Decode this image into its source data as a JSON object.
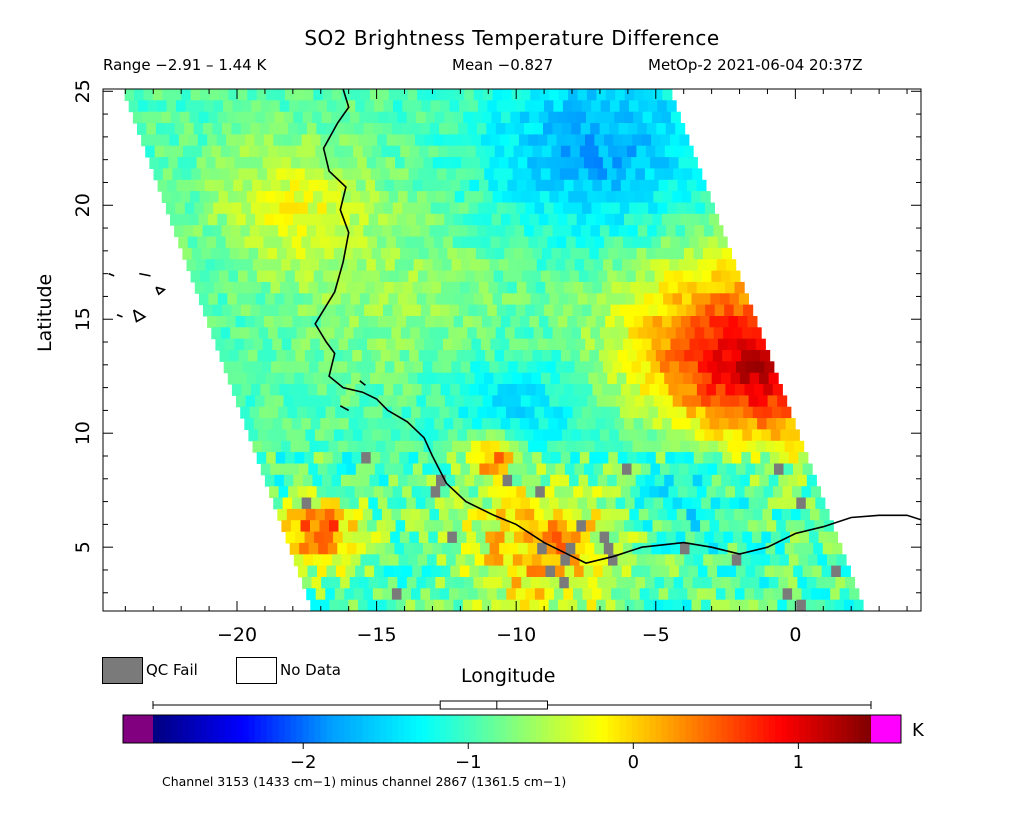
{
  "title": "SO2 Brightness Temperature Difference",
  "stats": {
    "range": "Range −2.91 – 1.44 K",
    "mean": "Mean −0.827",
    "satellite_time": "MetOp-2 2021-06-04 20:37Z"
  },
  "axes": {
    "xlabel": "Longitude",
    "ylabel": "Latitude",
    "xlim": [
      -24.8,
      4.5
    ],
    "ylim": [
      2.2,
      25.1
    ],
    "xticks": [
      -20,
      -15,
      -10,
      -5,
      0
    ],
    "xtick_labels": [
      "−20",
      "−15",
      "−10",
      "−5",
      "0"
    ],
    "yticks": [
      5,
      10,
      15,
      20,
      25
    ],
    "ytick_labels": [
      "5",
      "10",
      "15",
      "20",
      "25"
    ]
  },
  "legend": {
    "qc_fail_label": "QC Fail",
    "qc_fail_color": "#7a7a7a",
    "no_data_label": "No Data",
    "no_data_color": "#ffffff"
  },
  "colorbar": {
    "min": -2.91,
    "max": 1.44,
    "ticks": [
      -2,
      -1,
      0,
      1
    ],
    "tick_labels": [
      "−2",
      "−1",
      "0",
      "1"
    ],
    "unit": "K",
    "under_color": "#800080",
    "over_color": "#ff00ff",
    "stops": [
      "#000080",
      "#0000ff",
      "#00a0ff",
      "#00ffff",
      "#80ff80",
      "#ffff00",
      "#ff8000",
      "#ff0000",
      "#800000"
    ],
    "boxplot": {
      "whisker_low": -2.91,
      "q1": -1.17,
      "median": -0.827,
      "q3": -0.52,
      "whisker_high": 1.44
    }
  },
  "footnote": "Channel 3153 (1433 cm−1) minus channel 2867 (1361.5 cm−1)",
  "colors": {
    "frame": "#000000",
    "coastline": "#000000"
  },
  "chart_data": {
    "type": "heatmap",
    "title": "SO2 Brightness Temperature Difference",
    "xlabel": "Longitude",
    "ylabel": "Latitude",
    "x_range": [
      -24.8,
      4.5
    ],
    "y_range": [
      2.2,
      25.1
    ],
    "value_range": [
      -2.91,
      1.44
    ],
    "mean": -0.827,
    "unit": "K",
    "swath_corners": [
      [
        -24.1,
        25.1
      ],
      [
        -4.5,
        25.1
      ],
      [
        2.5,
        2.2
      ],
      [
        -17.3,
        2.2
      ]
    ],
    "regions": [
      {
        "lon": -1.0,
        "lat": 12.5,
        "radius": 3.5,
        "value": 0.7
      },
      {
        "lon": -3.0,
        "lat": 14.5,
        "radius": 4.0,
        "value": 0.2
      },
      {
        "lon": -9.0,
        "lat": 5.0,
        "radius": 3.0,
        "value": 0.4
      },
      {
        "lon": -17.0,
        "lat": 5.5,
        "radius": 1.5,
        "value": 0.8
      },
      {
        "lon": -11.0,
        "lat": 9.0,
        "radius": 1.0,
        "value": 0.6
      },
      {
        "lon": -7.0,
        "lat": 22.5,
        "radius": 4.0,
        "value": -1.9
      },
      {
        "lon": -10.0,
        "lat": 11.0,
        "radius": 2.5,
        "value": -1.6
      },
      {
        "lon": -4.0,
        "lat": 7.5,
        "radius": 2.5,
        "value": -1.5
      },
      {
        "lon": -18.0,
        "lat": 20.0,
        "radius": 3.0,
        "value": -0.2
      },
      {
        "lon": -14.0,
        "lat": 16.0,
        "radius": 4.0,
        "value": -0.6
      }
    ],
    "coastline": [
      [
        -16.2,
        25.1
      ],
      [
        -16.0,
        24.3
      ],
      [
        -16.4,
        23.6
      ],
      [
        -16.9,
        22.5
      ],
      [
        -16.7,
        21.5
      ],
      [
        -16.1,
        20.8
      ],
      [
        -16.3,
        19.8
      ],
      [
        -16.0,
        18.8
      ],
      [
        -16.2,
        17.5
      ],
      [
        -16.5,
        16.2
      ],
      [
        -17.2,
        14.8
      ],
      [
        -16.8,
        14.0
      ],
      [
        -16.5,
        13.5
      ],
      [
        -16.7,
        12.5
      ],
      [
        -16.2,
        12.0
      ],
      [
        -15.5,
        11.8
      ],
      [
        -15.0,
        11.5
      ],
      [
        -14.6,
        11.0
      ],
      [
        -13.9,
        10.5
      ],
      [
        -13.3,
        9.8
      ],
      [
        -13.0,
        9.0
      ],
      [
        -12.5,
        7.8
      ],
      [
        -11.8,
        7.0
      ],
      [
        -10.8,
        6.4
      ],
      [
        -10.0,
        6.0
      ],
      [
        -9.0,
        5.2
      ],
      [
        -8.0,
        4.6
      ],
      [
        -7.5,
        4.3
      ],
      [
        -6.5,
        4.6
      ],
      [
        -5.5,
        5.0
      ],
      [
        -4.0,
        5.2
      ],
      [
        -3.0,
        5.0
      ],
      [
        -2.0,
        4.7
      ],
      [
        -1.0,
        5.0
      ],
      [
        0.0,
        5.6
      ],
      [
        1.0,
        5.9
      ],
      [
        2.0,
        6.3
      ],
      [
        3.0,
        6.4
      ],
      [
        4.0,
        6.4
      ],
      [
        4.5,
        6.2
      ]
    ],
    "islands": [
      [
        [
          -24.6,
          17.0
        ],
        [
          -24.4,
          16.9
        ]
      ],
      [
        [
          -23.5,
          17.0
        ],
        [
          -23.1,
          16.9
        ]
      ],
      [
        [
          -22.9,
          16.4
        ],
        [
          -22.6,
          16.3
        ],
        [
          -22.8,
          16.1
        ],
        [
          -22.9,
          16.4
        ]
      ],
      [
        [
          -24.3,
          15.2
        ],
        [
          -24.1,
          15.1
        ]
      ],
      [
        [
          -23.7,
          15.4
        ],
        [
          -23.3,
          15.1
        ],
        [
          -23.6,
          14.9
        ],
        [
          -23.7,
          15.4
        ]
      ],
      [
        [
          -16.3,
          11.2
        ],
        [
          -16.0,
          11.0
        ]
      ],
      [
        [
          -15.6,
          12.3
        ],
        [
          -15.4,
          12.1
        ]
      ]
    ]
  }
}
